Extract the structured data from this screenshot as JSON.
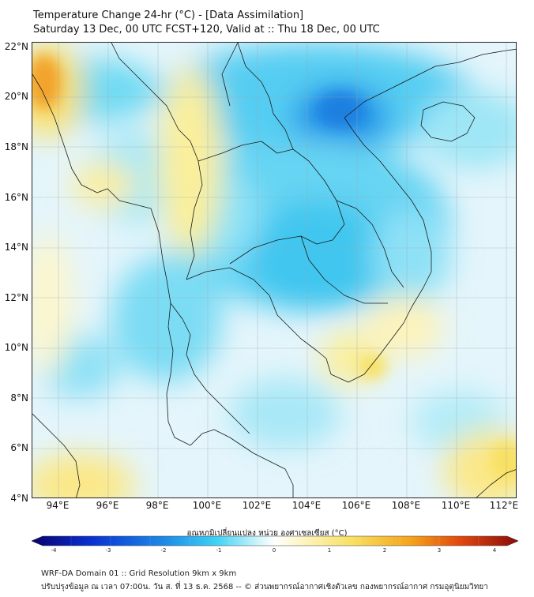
{
  "title": {
    "line1": "Temperature Change 24-hr (°C) - [Data Assimilation]",
    "line2": "Saturday 13 Dec, 00 UTC FCST+120, Valid at :: Thu 18 Dec, 00 UTC"
  },
  "lat_labels": [
    "22°N",
    "20°N",
    "18°N",
    "16°N",
    "14°N",
    "12°N",
    "10°N",
    "8°N",
    "6°N",
    "4°N"
  ],
  "lon_labels": [
    "94°E",
    "96°E",
    "98°E",
    "100°E",
    "102°E",
    "104°E",
    "106°E",
    "108°E",
    "110°E",
    "112°E"
  ],
  "colorbar": {
    "title": "อุณหภูมิเปลี่ยนแปลง หน่วย องศาเซลเซียส (°C)",
    "ticks": [
      "-4",
      "-3",
      "-2",
      "-1",
      "0",
      "1",
      "2",
      "3",
      "4"
    ],
    "colors": [
      "#08006e",
      "#0a2fd0",
      "#1e8fe8",
      "#3fd2f5",
      "#d6f6fb",
      "#ffffff",
      "#fdf6c8",
      "#f8e060",
      "#f5a31a",
      "#e0480e",
      "#8a0b0b"
    ]
  },
  "footer": {
    "line1": "WRF-DA Domain 01 :: Grid Resolution 9km x 9km",
    "line2": "ปรับปรุงข้อมูล ณ เวลา 07:00น. วัน ส. ที่ 13 ธ.ค. 2568 -- © ส่วนพยากรณ์อากาศเชิงตัวเลข กองพยากรณ์อากาศ กรมอุตุนิยมวิทยา"
  }
}
